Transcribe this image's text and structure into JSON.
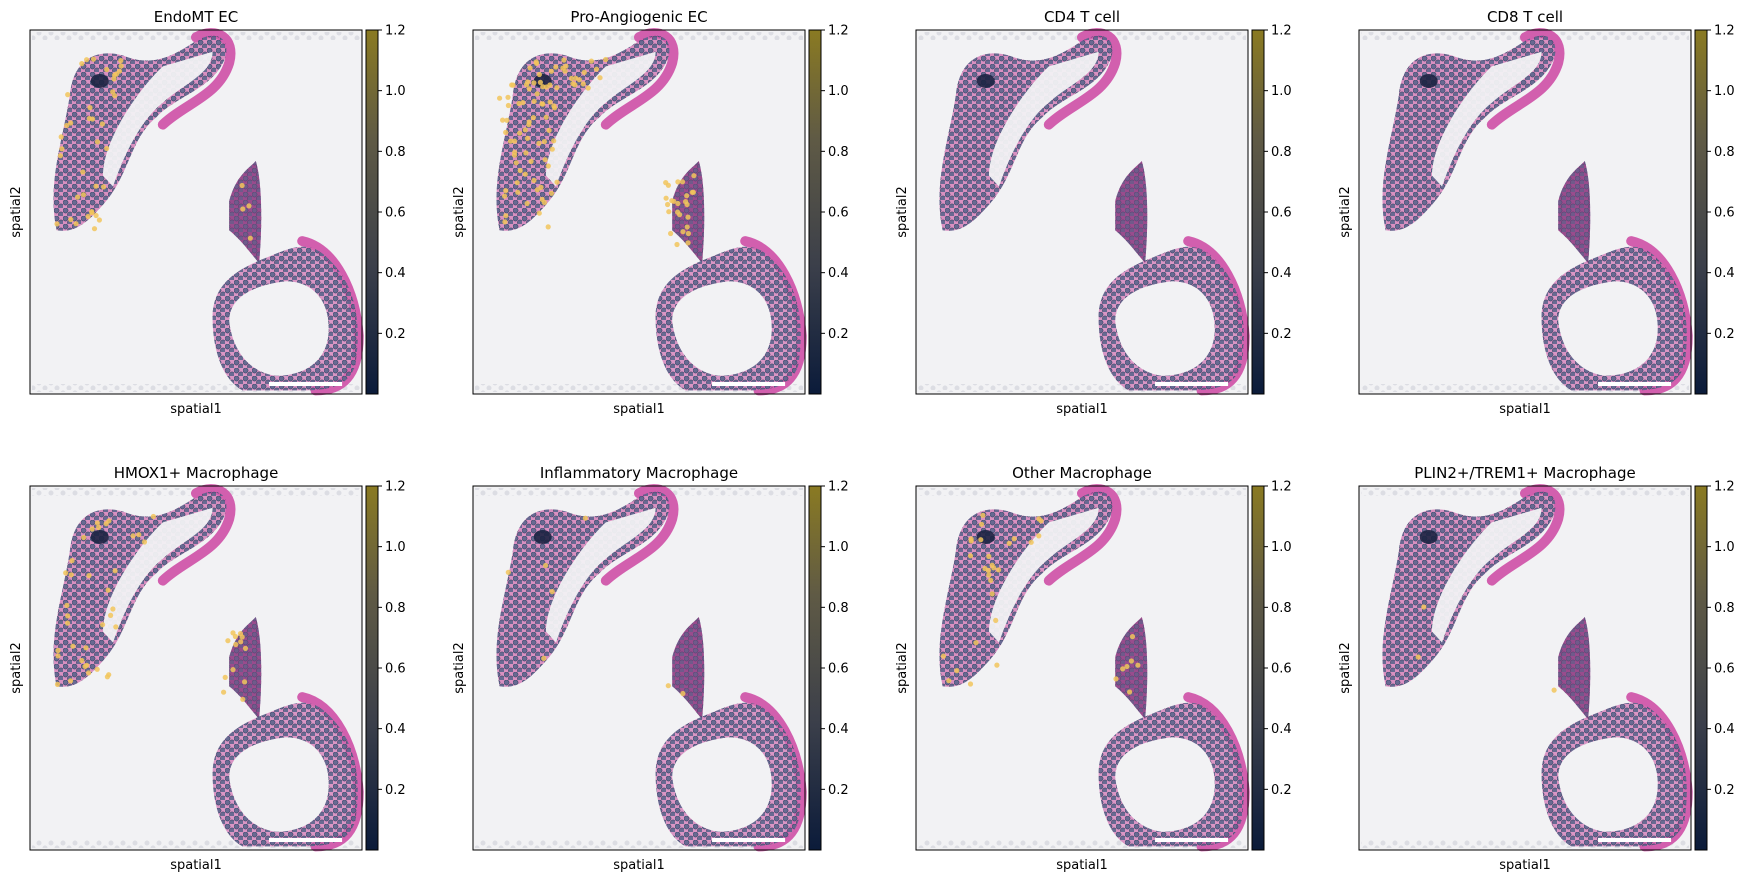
{
  "figure": {
    "panels": [
      {
        "title": "EndoMT EC",
        "xlabel": "spatial1",
        "ylabel": "spatial2",
        "hot": 0.3
      },
      {
        "title": "Pro-Angiogenic EC",
        "xlabel": "spatial1",
        "ylabel": "spatial2",
        "hot": 0.8
      },
      {
        "title": "CD4 T cell",
        "xlabel": "spatial1",
        "ylabel": "spatial2",
        "hot": 0.0
      },
      {
        "title": "CD8 T cell",
        "xlabel": "spatial1",
        "ylabel": "spatial2",
        "hot": 0.0
      },
      {
        "title": "HMOX1+ Macrophage",
        "xlabel": "spatial1",
        "ylabel": "spatial2",
        "hot": 0.35
      },
      {
        "title": "Inflammatory Macrophage",
        "xlabel": "spatial1",
        "ylabel": "spatial2",
        "hot": 0.05
      },
      {
        "title": "Other Macrophage",
        "xlabel": "spatial1",
        "ylabel": "spatial2",
        "hot": 0.25
      },
      {
        "title": "PLIN2+/TREM1+ Macrophage",
        "xlabel": "spatial1",
        "ylabel": "spatial2",
        "hot": 0.02
      }
    ]
  },
  "chart_data": {
    "type": "scatter",
    "layout": "2x4 grid of spatial transcriptomics spot plots over H&E tissue image",
    "xlabel": "spatial1",
    "ylabel": "spatial2",
    "colorbar": {
      "colormap": "cividis",
      "vmin": 0,
      "vmax": 1.2,
      "ticks": [
        "0.2",
        "0.4",
        "0.6",
        "0.8",
        "1.0",
        "1.2"
      ]
    },
    "colors": {
      "tissue_pink": "#d06fb0",
      "spot_base": "#4a5a7a",
      "spot_high": "#f2c55c",
      "background": "#f2f2f4"
    }
  }
}
